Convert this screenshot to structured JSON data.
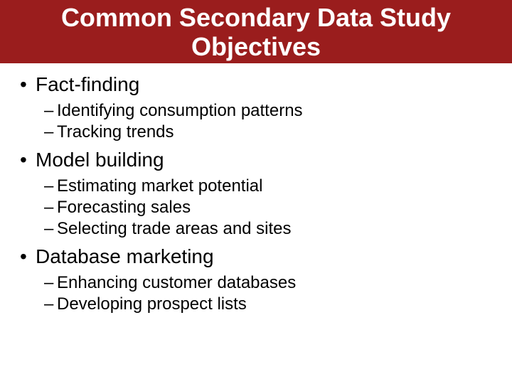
{
  "title": "Common Secondary Data Study Objectives",
  "colors": {
    "title_bg": "#9a1d1d",
    "title_fg": "#ffffff",
    "body_bg": "#ffffff",
    "text": "#000000"
  },
  "typography": {
    "title_fontsize": 36,
    "title_weight": "bold",
    "level1_fontsize": 28,
    "level2_fontsize": 24,
    "font_family": "Arial"
  },
  "items": [
    {
      "label": "Fact-finding",
      "sub": [
        "Identifying consumption patterns",
        "Tracking trends"
      ]
    },
    {
      "label": "Model building",
      "sub": [
        "Estimating market potential",
        "Forecasting sales",
        "Selecting trade areas and sites"
      ]
    },
    {
      "label": "Database marketing",
      "sub": [
        "Enhancing customer databases",
        "Developing prospect lists"
      ]
    }
  ]
}
